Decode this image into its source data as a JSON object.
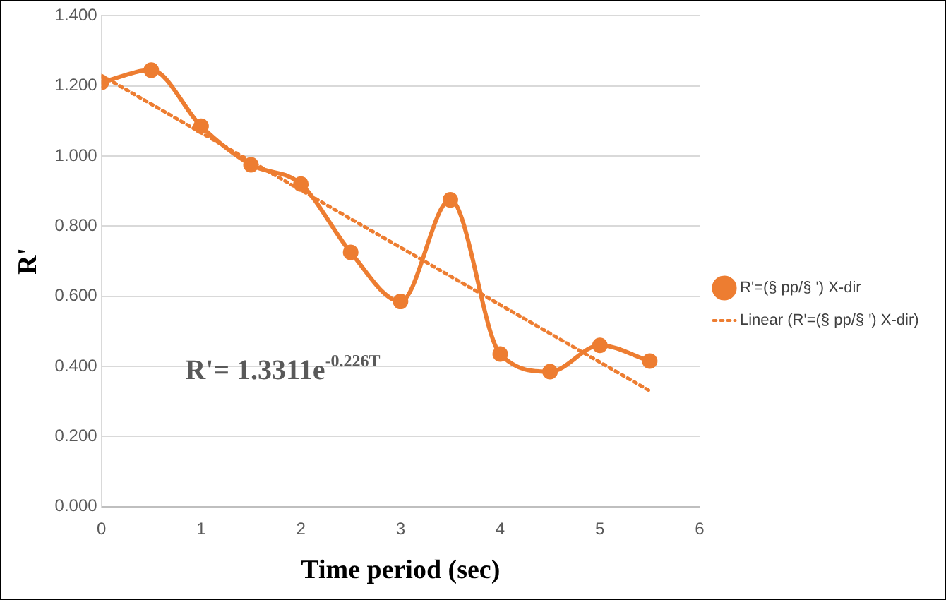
{
  "chart_data": {
    "type": "line",
    "xlabel": "Time period (sec)",
    "ylabel": "R'",
    "xlim": [
      0,
      6
    ],
    "xticks": [
      0,
      1,
      2,
      3,
      4,
      5,
      6
    ],
    "ylim": [
      0,
      1.4
    ],
    "yticks": [
      {
        "value": 0,
        "label": "0.000"
      },
      {
        "value": 0.2,
        "label": "0.200"
      },
      {
        "value": 0.4,
        "label": "0.400"
      },
      {
        "value": 0.6,
        "label": "0.600"
      },
      {
        "value": 0.8,
        "label": "0.800"
      },
      {
        "value": 1.0,
        "label": "1.000"
      },
      {
        "value": 1.2,
        "label": "1.200"
      },
      {
        "value": 1.4,
        "label": "1.400"
      }
    ],
    "grid": "y",
    "legend": "right",
    "marker": "circle",
    "line_style": "solid",
    "series": [
      {
        "name": "R'=(§ pp/§ ') X-dir",
        "color": "#ed7d31",
        "x": [
          0,
          0.5,
          1,
          1.5,
          2,
          2.5,
          3,
          3.5,
          4,
          4.5,
          5,
          5.5
        ],
        "values": [
          1.21,
          1.245,
          1.085,
          0.975,
          0.92,
          0.725,
          0.585,
          0.875,
          0.435,
          0.385,
          0.46,
          0.415
        ]
      },
      {
        "name": "Linear (R'=(§ pp/§ ') X-dir)",
        "type": "line",
        "color": "#ed7d31",
        "marker": "none",
        "line_style": "dotted",
        "x": [
          0,
          5.5
        ],
        "values": [
          1.23,
          0.33
        ]
      }
    ],
    "annotations": [
      "R'= 1.3311e$^{-0.226T}$"
    ]
  }
}
